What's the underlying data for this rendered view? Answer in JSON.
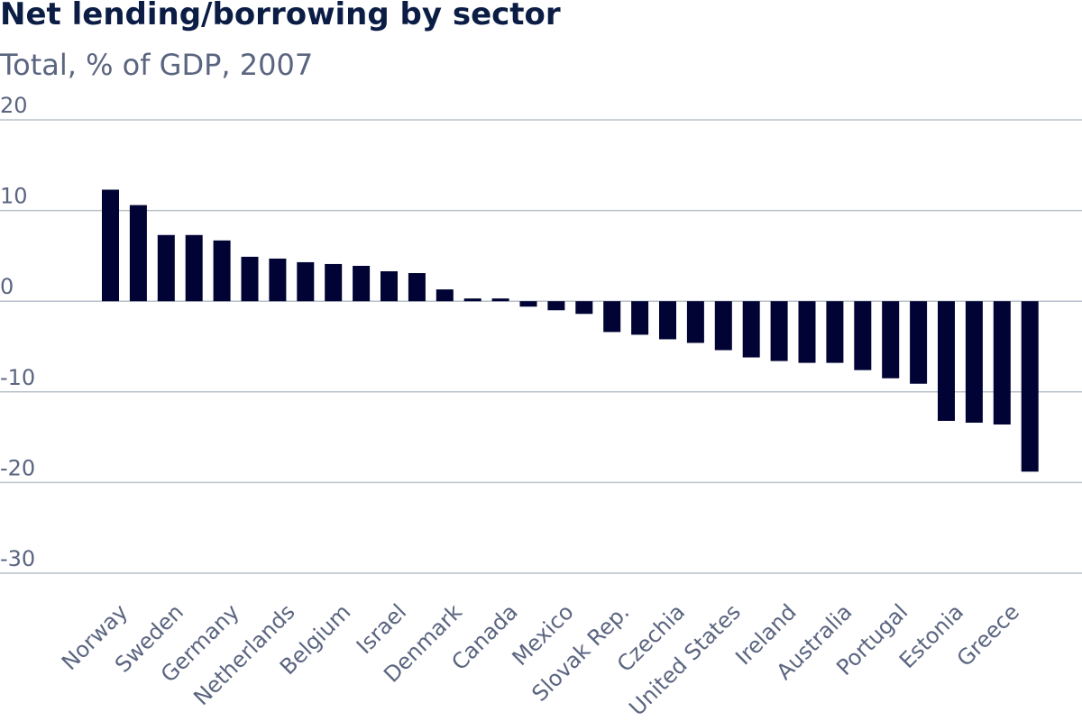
{
  "chart_data": {
    "type": "bar",
    "title": "Net lending/borrowing by sector",
    "subtitle": "Total, % of GDP, 2007",
    "xlabel": "",
    "ylabel": "",
    "ylim": [
      -30,
      20
    ],
    "yticks": [
      20,
      10,
      0,
      -10,
      -20,
      -30
    ],
    "ytick_labels": [
      "20",
      "10",
      "0",
      "-10",
      "-20",
      "-30"
    ],
    "grid": true,
    "legend": "none",
    "bar_color": "#000333",
    "categories": [
      "Norway",
      "",
      "Sweden",
      "",
      "Germany",
      "",
      "Netherlands",
      "",
      "Belgium",
      "",
      "Israel",
      "",
      "Denmark",
      "",
      "Canada",
      "",
      "Mexico",
      "",
      "Slovak Rep.",
      "",
      "Czechia",
      "",
      "United States",
      "",
      "Ireland",
      "",
      "Australia",
      "",
      "Portugal",
      "",
      "Estonia",
      "",
      "Greece",
      ""
    ],
    "values": [
      12.3,
      10.6,
      7.3,
      7.3,
      6.7,
      4.9,
      4.7,
      4.3,
      4.1,
      3.9,
      3.3,
      3.1,
      1.3,
      0.3,
      0.3,
      -0.6,
      -1.0,
      -1.4,
      -3.4,
      -3.7,
      -4.2,
      -4.6,
      -5.4,
      -6.2,
      -6.6,
      -6.8,
      -6.8,
      -7.6,
      -8.5,
      -9.1,
      -13.2,
      -13.4,
      -13.6,
      -18.8
    ]
  }
}
